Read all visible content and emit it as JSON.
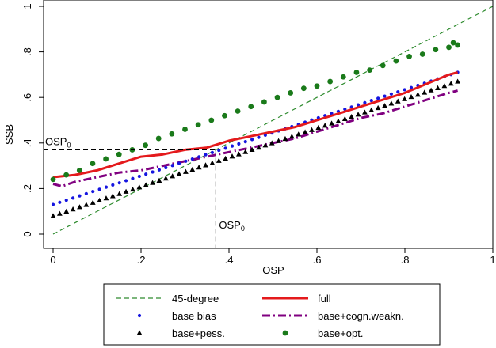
{
  "chart_data": {
    "type": "scatter",
    "title": "",
    "xlabel": "OSP",
    "ylabel": "SSB",
    "xlim": [
      0,
      1
    ],
    "ylim": [
      0,
      1
    ],
    "grid": false,
    "legend_position": "bottom",
    "x_ticks": [
      {
        "value": 0,
        "label": "0"
      },
      {
        "value": 0.2,
        "label": ".2"
      },
      {
        "value": 0.4,
        "label": ".4"
      },
      {
        "value": 0.6,
        "label": ".6"
      },
      {
        "value": 0.8,
        "label": ".8"
      },
      {
        "value": 1,
        "label": "1"
      }
    ],
    "y_ticks": [
      {
        "value": 0,
        "label": "0"
      },
      {
        "value": 0.2,
        "label": ".2"
      },
      {
        "value": 0.4,
        "label": ".4"
      },
      {
        "value": 0.6,
        "label": ".6"
      },
      {
        "value": 0.8,
        "label": ".8"
      },
      {
        "value": 1,
        "label": "1"
      }
    ],
    "series": [
      {
        "name": "45-degree",
        "style": "dashed-line",
        "color": "#2e8b2e",
        "x": [
          0,
          1
        ],
        "y": [
          0,
          1
        ]
      },
      {
        "name": "full",
        "style": "thick-line",
        "color": "#e41a1c",
        "x": [
          0,
          0.05,
          0.1,
          0.15,
          0.2,
          0.25,
          0.3,
          0.35,
          0.4,
          0.45,
          0.5,
          0.55,
          0.6,
          0.65,
          0.7,
          0.75,
          0.8,
          0.85,
          0.9,
          0.92
        ],
        "y": [
          0.25,
          0.26,
          0.28,
          0.31,
          0.34,
          0.35,
          0.37,
          0.38,
          0.41,
          0.43,
          0.45,
          0.47,
          0.5,
          0.53,
          0.56,
          0.59,
          0.62,
          0.66,
          0.7,
          0.71
        ]
      },
      {
        "name": "base bias",
        "style": "dots",
        "color": "#1515e0",
        "x_start": 0,
        "x_end": 0.92,
        "count": 62,
        "y_start": 0.13,
        "y_end": 0.71
      },
      {
        "name": "base+cogn.weakn.",
        "style": "dash-dot-line",
        "color": "#800080",
        "x": [
          0,
          0.02,
          0.05,
          0.1,
          0.15,
          0.2,
          0.25,
          0.3,
          0.35,
          0.4,
          0.45,
          0.5,
          0.55,
          0.6,
          0.65,
          0.7,
          0.75,
          0.8,
          0.85,
          0.9,
          0.92
        ],
        "y": [
          0.22,
          0.21,
          0.23,
          0.25,
          0.27,
          0.28,
          0.3,
          0.32,
          0.34,
          0.36,
          0.38,
          0.4,
          0.42,
          0.45,
          0.48,
          0.51,
          0.53,
          0.56,
          0.59,
          0.62,
          0.63
        ]
      },
      {
        "name": "base+pess.",
        "style": "triangles",
        "color": "#000000",
        "x_start": 0,
        "x_end": 0.92,
        "count": 62,
        "y_start": 0.08,
        "y_end": 0.67
      },
      {
        "name": "base+opt.",
        "style": "big-dots",
        "color": "#1a7a1a",
        "x": [
          0,
          0.03,
          0.06,
          0.09,
          0.12,
          0.15,
          0.18,
          0.21,
          0.24,
          0.27,
          0.3,
          0.33,
          0.36,
          0.39,
          0.42,
          0.45,
          0.48,
          0.51,
          0.54,
          0.57,
          0.6,
          0.63,
          0.66,
          0.69,
          0.72,
          0.75,
          0.78,
          0.81,
          0.84,
          0.87,
          0.9,
          0.91,
          0.92
        ],
        "y": [
          0.24,
          0.26,
          0.28,
          0.31,
          0.33,
          0.35,
          0.37,
          0.39,
          0.42,
          0.44,
          0.46,
          0.48,
          0.5,
          0.52,
          0.54,
          0.56,
          0.58,
          0.6,
          0.62,
          0.64,
          0.65,
          0.67,
          0.69,
          0.71,
          0.72,
          0.74,
          0.76,
          0.78,
          0.79,
          0.81,
          0.82,
          0.84,
          0.83
        ]
      }
    ],
    "annotations": [
      {
        "label": "OSP",
        "subscript": "0",
        "x": 0,
        "y": 0.37,
        "kind": "horizontal-ref"
      },
      {
        "label": "OSP",
        "subscript": "0",
        "x": 0.37,
        "y": 0,
        "kind": "vertical-ref"
      }
    ]
  }
}
